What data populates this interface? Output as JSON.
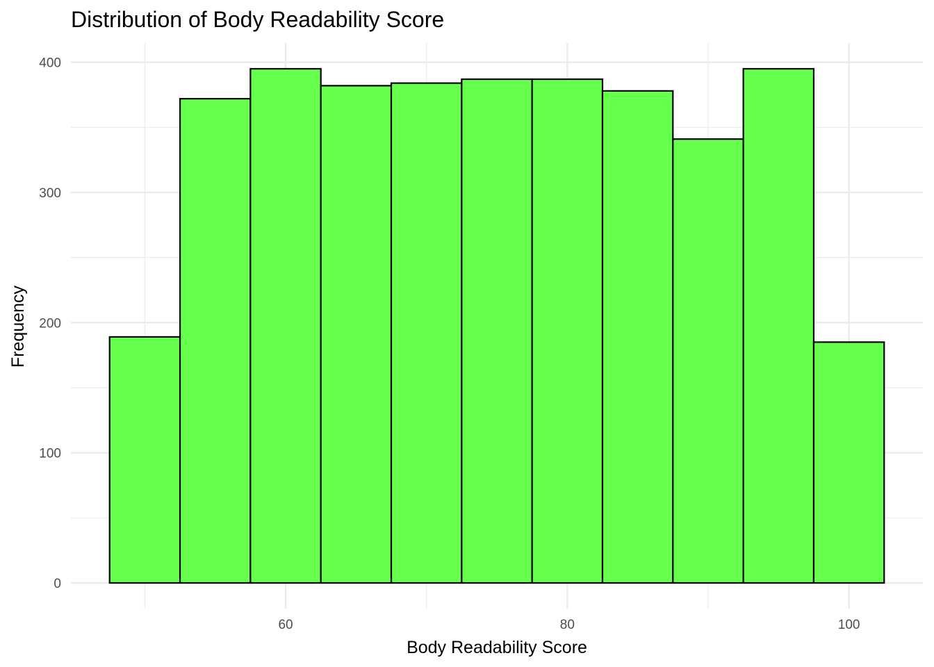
{
  "chart_data": {
    "type": "bar",
    "title": "Distribution of Body Readability Score",
    "xlabel": "Body Readability Score",
    "ylabel": "Frequency",
    "bin_width": 5,
    "bins": [
      {
        "start": 47.5,
        "end": 52.5,
        "value": 189
      },
      {
        "start": 52.5,
        "end": 57.5,
        "value": 372
      },
      {
        "start": 57.5,
        "end": 62.5,
        "value": 395
      },
      {
        "start": 62.5,
        "end": 67.5,
        "value": 382
      },
      {
        "start": 67.5,
        "end": 72.5,
        "value": 384
      },
      {
        "start": 72.5,
        "end": 77.5,
        "value": 387
      },
      {
        "start": 77.5,
        "end": 82.5,
        "value": 387
      },
      {
        "start": 82.5,
        "end": 87.5,
        "value": 378
      },
      {
        "start": 87.5,
        "end": 92.5,
        "value": 341
      },
      {
        "start": 92.5,
        "end": 97.5,
        "value": 395
      },
      {
        "start": 97.5,
        "end": 102.5,
        "value": 185
      }
    ],
    "xlim": [
      44.75,
      105.25
    ],
    "ylim": [
      -19.75,
      414.75
    ],
    "x_ticks": [
      60,
      80,
      100
    ],
    "x_minor_ticks": [
      50,
      70,
      90
    ],
    "y_ticks": [
      0,
      100,
      200,
      300,
      400
    ],
    "y_minor_ticks": [
      50,
      150,
      250,
      350
    ],
    "grid": true,
    "bar_fill": "#66ff4d",
    "bar_stroke": "#000000",
    "grid_color": "#ebebeb"
  }
}
